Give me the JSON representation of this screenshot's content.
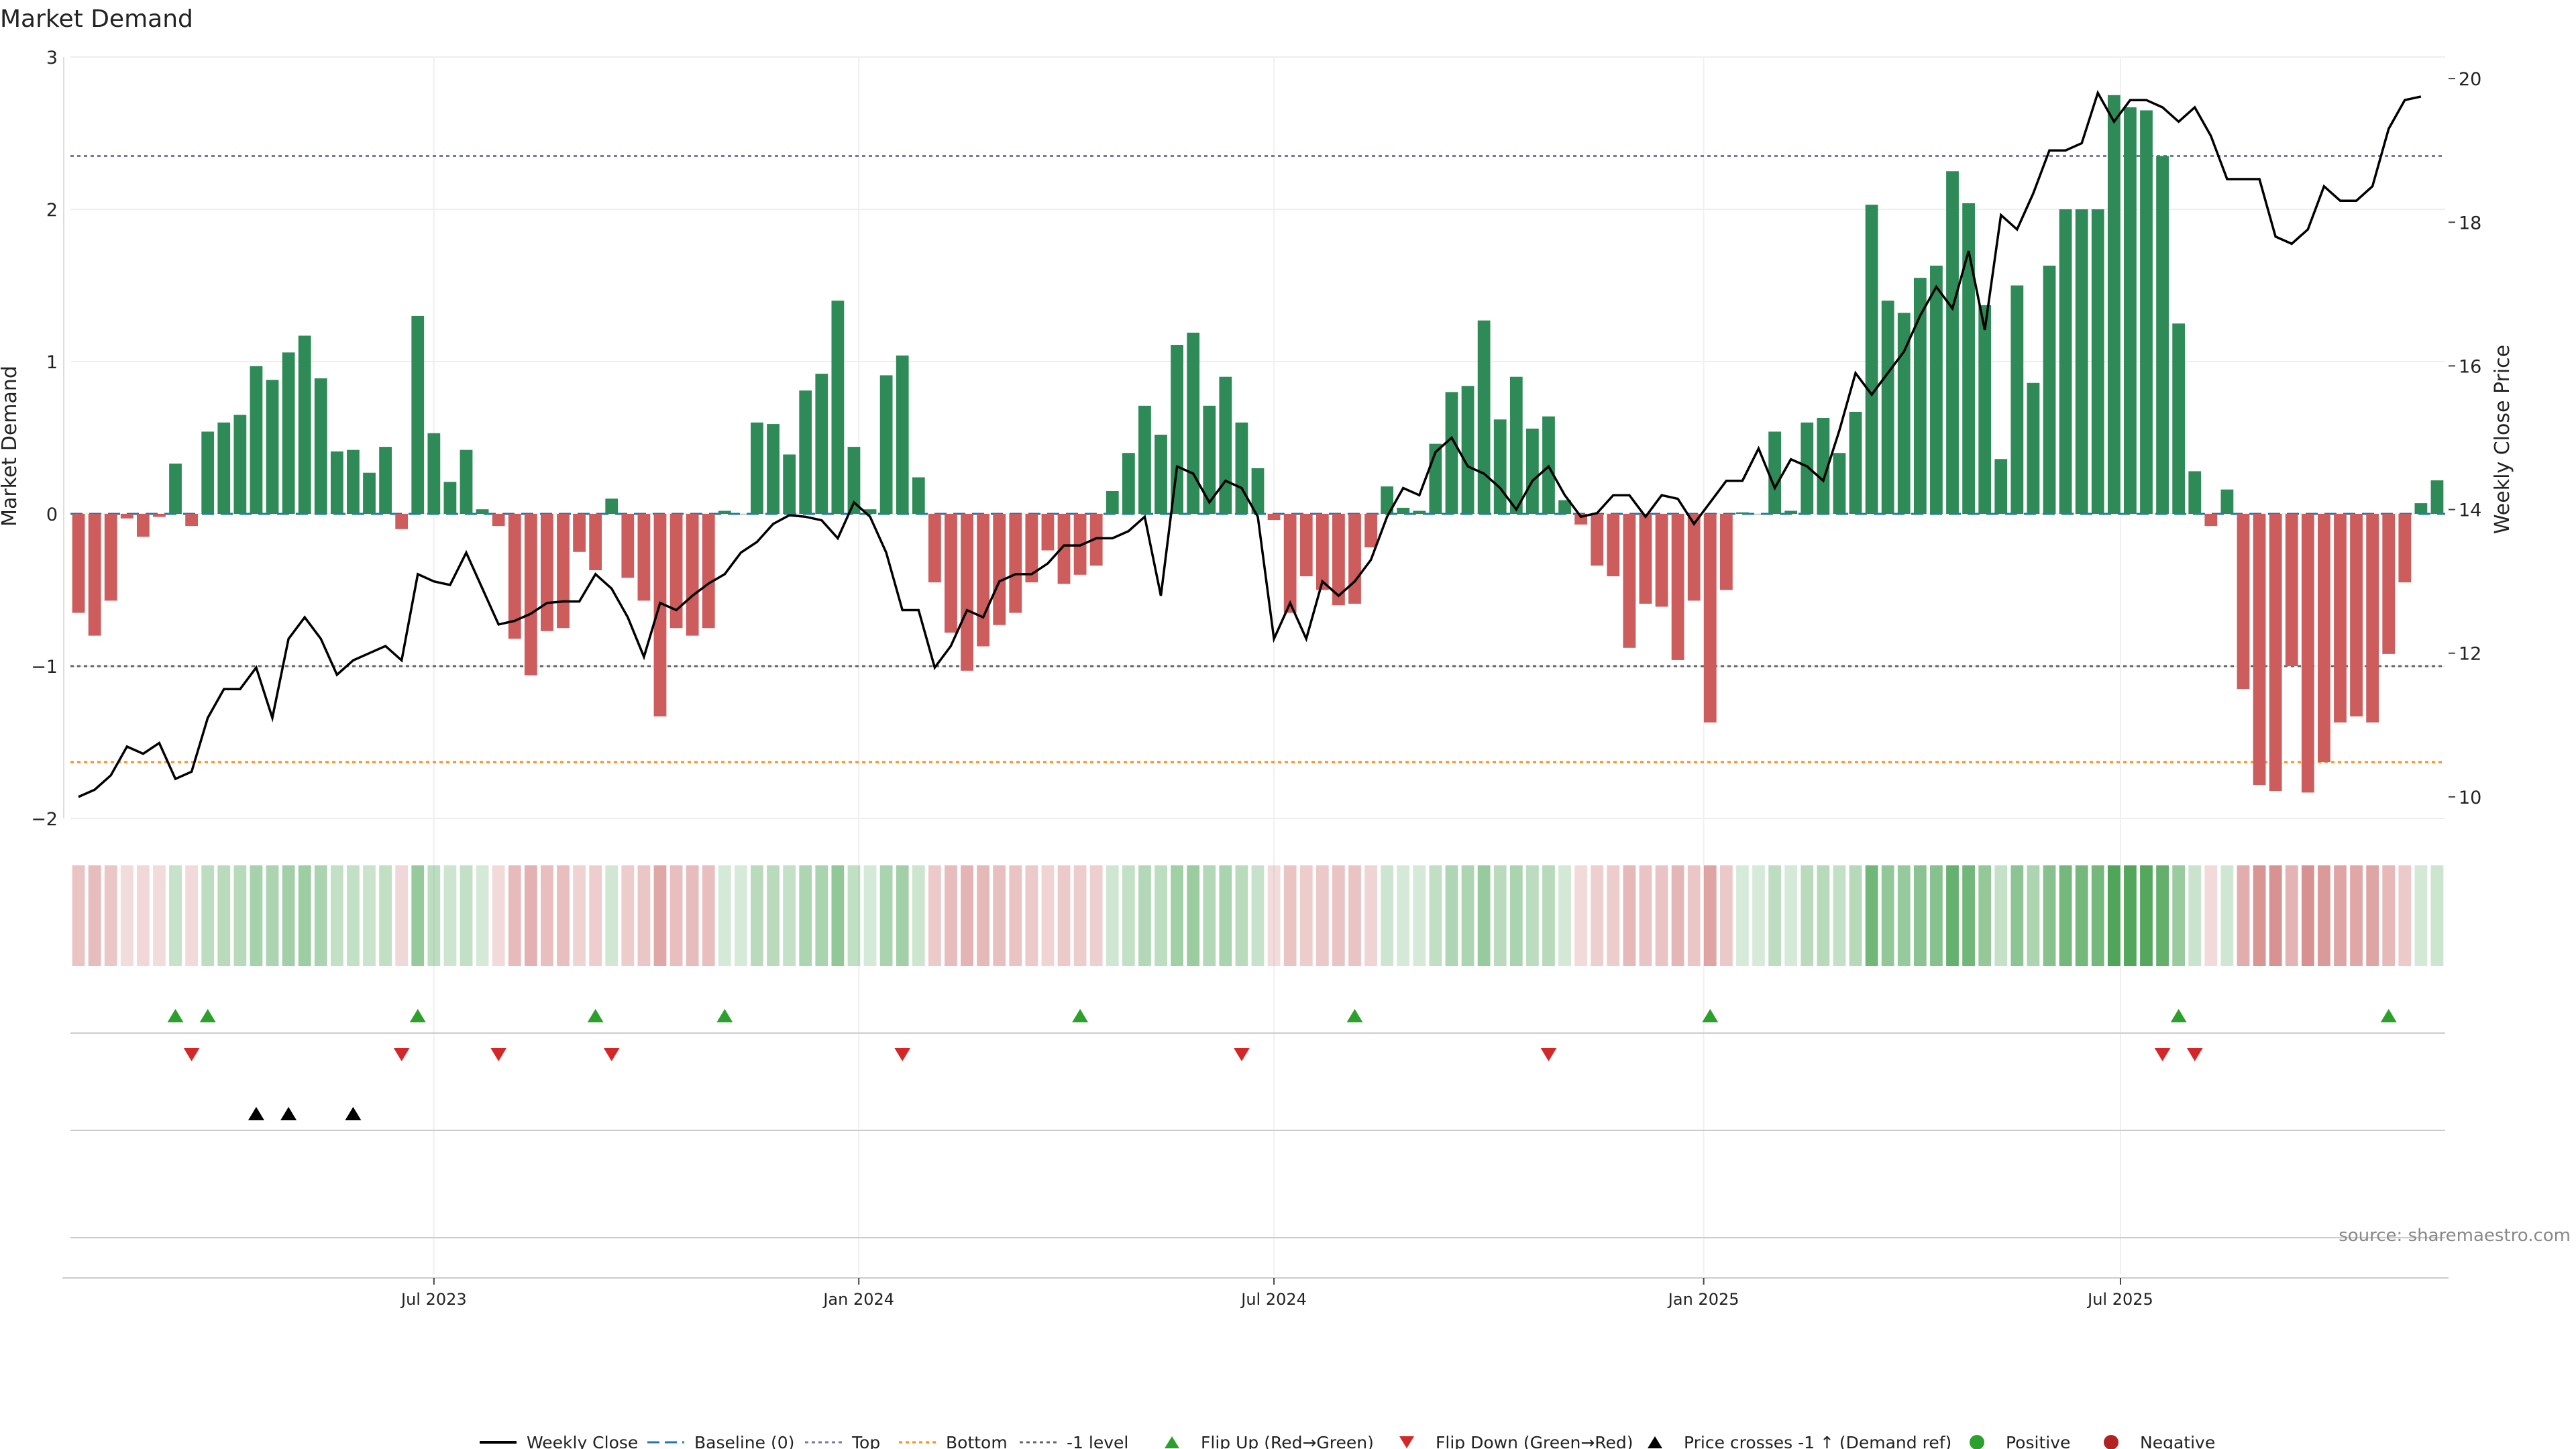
{
  "title": "Market Demand",
  "source": "source: sharemaestro.com",
  "colors": {
    "positive": "#2e8b57",
    "negative": "#cd5c5c",
    "price": "#000000",
    "baseline": "#1f77b4",
    "top": "#7777aa",
    "bottom": "#ff8c1a",
    "minus1": "#666666",
    "flip_up": "#2ca02c",
    "flip_down": "#d62728",
    "cross": "#000000",
    "pos_dot": "#2ca02c",
    "neg_dot": "#b22222"
  },
  "chart_data": {
    "type": "bar",
    "title": "Market Demand",
    "ylabel": "Market Demand",
    "y2label": "Weekly Close Price",
    "ylim": [
      -2,
      3
    ],
    "y2lim": [
      9.7,
      20.3
    ],
    "y_ticks": [
      -2,
      -1,
      0,
      1,
      2,
      3
    ],
    "y2_ticks": [
      10,
      12,
      14,
      16,
      18,
      20
    ],
    "x_ticks": [
      {
        "label": "Jul 2023",
        "week": 22
      },
      {
        "label": "Jan 2024",
        "week": 48.3
      },
      {
        "label": "Jul 2024",
        "week": 74
      },
      {
        "label": "Jan 2025",
        "week": 100.6
      },
      {
        "label": "Jul 2025",
        "week": 126.4
      }
    ],
    "reference_lines": {
      "baseline": 0,
      "top": 2.35,
      "bottom": -1.63,
      "minus1_level": -1
    },
    "demand": [
      -0.65,
      -0.8,
      -0.57,
      -0.03,
      -0.15,
      -0.02,
      0.33,
      -0.08,
      0.54,
      0.6,
      0.65,
      0.97,
      0.88,
      1.06,
      1.17,
      0.89,
      0.41,
      0.42,
      0.27,
      0.44,
      -0.1,
      1.3,
      0.53,
      0.21,
      0.42,
      0.03,
      -0.08,
      -0.82,
      -1.06,
      -0.77,
      -0.75,
      -0.25,
      -0.37,
      0.1,
      -0.42,
      -0.57,
      -1.33,
      -0.75,
      -0.8,
      -0.75,
      0.02,
      0,
      0.6,
      0.59,
      0.39,
      0.81,
      0.92,
      1.4,
      0.44,
      0.03,
      0.91,
      1.04,
      0.24,
      -0.45,
      -0.78,
      -1.03,
      -0.87,
      -0.73,
      -0.65,
      -0.45,
      -0.24,
      -0.46,
      -0.4,
      -0.34,
      0.15,
      0.4,
      0.71,
      0.52,
      1.11,
      1.19,
      0.71,
      0.9,
      0.6,
      0.3,
      -0.04,
      -0.65,
      -0.41,
      -0.5,
      -0.6,
      -0.59,
      -0.22,
      0.18,
      0.04,
      0.02,
      0.46,
      0.8,
      0.84,
      1.27,
      0.62,
      0.9,
      0.56,
      0.64,
      0.09,
      -0.07,
      -0.34,
      -0.41,
      -0.88,
      -0.59,
      -0.61,
      -0.96,
      -0.57,
      -1.37,
      -0.5,
      0.01,
      0,
      0.54,
      0.02,
      0.6,
      0.63,
      0.4,
      0.67,
      2.03,
      1.4,
      1.32,
      1.55,
      1.63,
      2.25,
      2.04,
      1.37,
      0.36,
      1.5,
      0.86,
      1.63,
      2,
      2,
      2,
      2.75,
      2.67,
      2.65,
      2.35,
      1.25,
      0.28,
      -0.08,
      0.16,
      -1.15,
      -1.78,
      -1.82,
      -1,
      -1.83,
      -1.63,
      -1.37,
      -1.33,
      -1.37,
      -0.92,
      -0.45,
      0.07,
      0.22
    ],
    "weekly_close": [
      10,
      10.1,
      10.3,
      10.7,
      10.6,
      10.75,
      10.25,
      10.35,
      11.1,
      11.5,
      11.5,
      11.8,
      11.1,
      12.2,
      12.5,
      12.2,
      11.7,
      11.9,
      12,
      12.1,
      11.9,
      13.1,
      13,
      12.95,
      13.4,
      12.9,
      12.4,
      12.45,
      12.55,
      12.7,
      12.72,
      12.72,
      13.1,
      12.9,
      12.5,
      11.95,
      12.7,
      12.6,
      12.8,
      12.97,
      13.1,
      13.4,
      13.55,
      13.8,
      13.92,
      13.9,
      13.85,
      13.6,
      14.1,
      13.9,
      13.4,
      12.6,
      12.6,
      11.8,
      12.1,
      12.6,
      12.5,
      13,
      13.1,
      13.1,
      13.25,
      13.5,
      13.5,
      13.6,
      13.6,
      13.7,
      13.9,
      12.8,
      14.6,
      14.5,
      14.1,
      14.4,
      14.3,
      13.9,
      12.2,
      12.7,
      12.2,
      13,
      12.8,
      13,
      13.3,
      13.9,
      14.3,
      14.2,
      14.8,
      15,
      14.6,
      14.5,
      14.3,
      14,
      14.4,
      14.6,
      14.2,
      13.9,
      13.95,
      14.2,
      14.2,
      13.9,
      14.2,
      14.15,
      13.8,
      14.1,
      14.4,
      14.4,
      14.85,
      14.3,
      14.7,
      14.6,
      14.4,
      15.1,
      15.9,
      15.6,
      15.9,
      16.2,
      16.7,
      17.1,
      16.8,
      17.6,
      16.5,
      18.1,
      17.9,
      18.4,
      19,
      19,
      19.1,
      19.8,
      19.4,
      19.7,
      19.7,
      19.6,
      19.4,
      19.6,
      19.2,
      18.6,
      18.6,
      18.6,
      17.8,
      17.7,
      17.9,
      18.5,
      18.3,
      18.3,
      18.5,
      19.3,
      19.7,
      19.75
    ],
    "band": {
      "green_rgb": [
        70,
        160,
        80
      ],
      "red_rgb": [
        200,
        100,
        100
      ]
    },
    "flip_up_weeks": [
      6,
      8,
      21,
      32,
      40,
      62,
      79,
      101,
      130,
      143
    ],
    "flip_down_weeks": [
      7,
      20,
      26,
      33,
      51,
      72,
      91,
      129,
      131
    ],
    "cross_up_weeks": [
      11,
      13,
      17
    ],
    "legend": [
      {
        "key": "price",
        "label": "Weekly Close"
      },
      {
        "key": "baseline",
        "label": "Baseline (0)"
      },
      {
        "key": "top",
        "label": "Top"
      },
      {
        "key": "bottom",
        "label": "Bottom"
      },
      {
        "key": "minus1",
        "label": "-1 level"
      },
      {
        "key": "flip_up",
        "label": "Flip Up (Red→Green)"
      },
      {
        "key": "flip_down",
        "label": "Flip Down (Green→Red)"
      },
      {
        "key": "cross",
        "label": "Price crosses -1 ↑ (Demand ref)"
      },
      {
        "key": "pos_dot",
        "label": "Positive"
      },
      {
        "key": "neg_dot",
        "label": "Negative"
      }
    ]
  }
}
